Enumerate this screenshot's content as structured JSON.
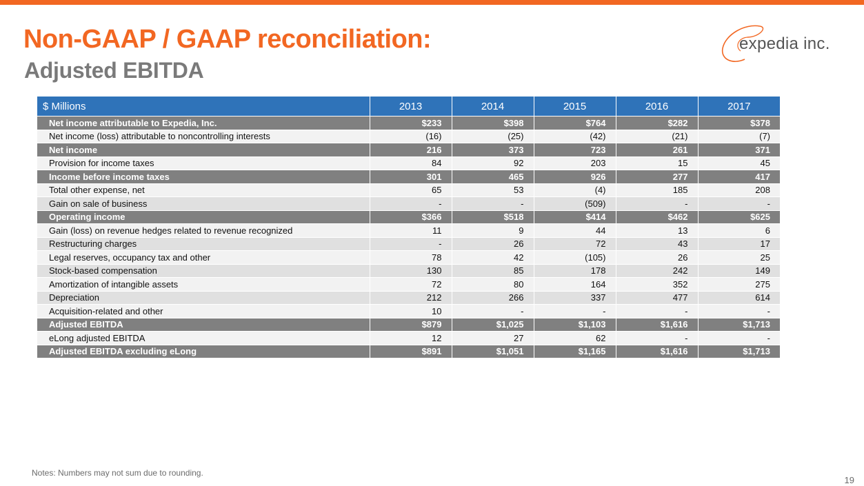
{
  "header": {
    "title": "Non-GAAP / GAAP reconciliation:",
    "subtitle": "Adjusted EBITDA",
    "logo_text": "expedia inc."
  },
  "colors": {
    "accent": "#f26722",
    "header_blue": "#2f73b9",
    "subtotal_gray": "#808080"
  },
  "table": {
    "columns": [
      "$ Millions",
      "2013",
      "2014",
      "2015",
      "2016",
      "2017"
    ],
    "rows": [
      {
        "label": "Net income attributable to Expedia, Inc.",
        "values": [
          "$233",
          "$398",
          "$764",
          "$282",
          "$378"
        ],
        "style": "subtotal"
      },
      {
        "label": "Net income (loss) attributable to noncontrolling interests",
        "values": [
          "(16)",
          "(25)",
          "(42)",
          "(21)",
          "(7)"
        ],
        "style": "alt-a"
      },
      {
        "label": "Net income",
        "values": [
          "216",
          "373",
          "723",
          "261",
          "371"
        ],
        "style": "subtotal"
      },
      {
        "label": "Provision for income taxes",
        "values": [
          "84",
          "92",
          "203",
          "15",
          "45"
        ],
        "style": "alt-a"
      },
      {
        "label": "Income before income taxes",
        "values": [
          "301",
          "465",
          "926",
          "277",
          "417"
        ],
        "style": "subtotal"
      },
      {
        "label": "Total other expense, net",
        "values": [
          "65",
          "53",
          "(4)",
          "185",
          "208"
        ],
        "style": "alt-a"
      },
      {
        "label": "Gain on sale of business",
        "values": [
          "-",
          "-",
          "(509)",
          "-",
          "-"
        ],
        "style": "alt-b"
      },
      {
        "label": "Operating income",
        "values": [
          "$366",
          "$518",
          "$414",
          "$462",
          "$625"
        ],
        "style": "subtotal"
      },
      {
        "label": "Gain (loss) on revenue hedges related to revenue recognized",
        "values": [
          "11",
          "9",
          "44",
          "13",
          "6"
        ],
        "style": "alt-a"
      },
      {
        "label": "Restructuring charges",
        "values": [
          "-",
          "26",
          "72",
          "43",
          "17"
        ],
        "style": "alt-b"
      },
      {
        "label": "Legal reserves, occupancy tax and other",
        "values": [
          "78",
          "42",
          "(105)",
          "26",
          "25"
        ],
        "style": "alt-a"
      },
      {
        "label": "Stock-based compensation",
        "values": [
          "130",
          "85",
          "178",
          "242",
          "149"
        ],
        "style": "alt-b"
      },
      {
        "label": "Amortization of intangible assets",
        "values": [
          "72",
          "80",
          "164",
          "352",
          "275"
        ],
        "style": "alt-a"
      },
      {
        "label": "Depreciation",
        "values": [
          "212",
          "266",
          "337",
          "477",
          "614"
        ],
        "style": "alt-b"
      },
      {
        "label": "Acquisition-related and other",
        "values": [
          "10",
          "-",
          "-",
          "-",
          "-"
        ],
        "style": "alt-a"
      },
      {
        "label": "Adjusted EBITDA",
        "values": [
          "$879",
          "$1,025",
          "$1,103",
          "$1,616",
          "$1,713"
        ],
        "style": "subtotal"
      },
      {
        "label": "eLong adjusted EBITDA",
        "values": [
          "12",
          "27",
          "62",
          "-",
          "-"
        ],
        "style": "alt-a"
      },
      {
        "label": "Adjusted EBITDA excluding eLong",
        "values": [
          "$891",
          "$1,051",
          "$1,165",
          "$1,616",
          "$1,713"
        ],
        "style": "subtotal"
      }
    ]
  },
  "footer": {
    "note": "Notes: Numbers may not sum due to rounding.",
    "page_number": "19"
  }
}
